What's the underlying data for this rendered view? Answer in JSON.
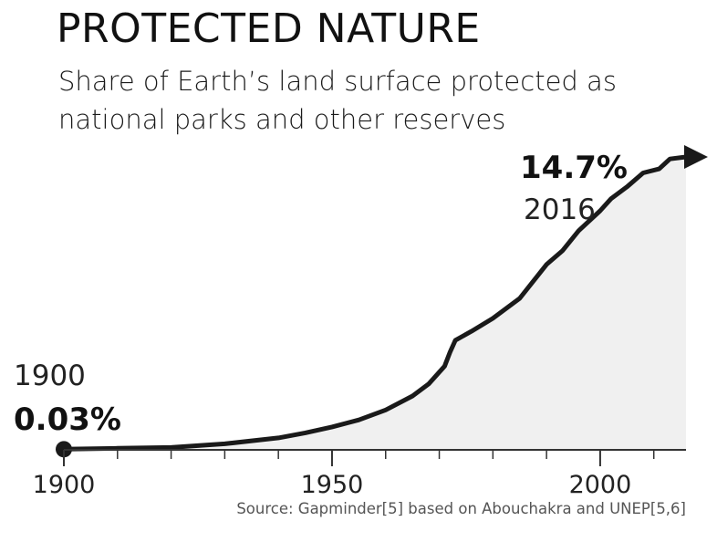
{
  "title": "PROTECTED NATURE",
  "subtitle": "Share of Earth’s land surface protected as national parks and other reserves",
  "source": "Source: Gapminder[5] based on Abouchakra and UNEP[5,6]",
  "colors": {
    "line": "#1a1a1a",
    "area": "#f0f0f0",
    "axis": "#333333"
  },
  "chart_data": {
    "type": "area",
    "title": "PROTECTED NATURE",
    "subtitle": "Share of Earth’s land surface protected as national parks and other reserves",
    "xlabel": "",
    "ylabel": "",
    "xlim": [
      1900,
      2016
    ],
    "ylim": [
      0,
      14.7
    ],
    "x_ticks": [
      1900,
      1950,
      2000
    ],
    "grid": false,
    "series": [
      {
        "x": [
          1900,
          1910,
          1920,
          1930,
          1940,
          1945,
          1950,
          1955,
          1960,
          1965,
          1968,
          1971,
          1972,
          1973,
          1976,
          1980,
          1985,
          1990,
          1993,
          1996,
          2000,
          2002,
          2005,
          2008,
          2011,
          2013,
          2016
        ],
        "y": [
          0.03,
          0.08,
          0.12,
          0.3,
          0.6,
          0.85,
          1.15,
          1.5,
          2.0,
          2.7,
          3.3,
          4.2,
          4.9,
          5.5,
          5.95,
          6.6,
          7.6,
          9.3,
          10.0,
          11.0,
          12.0,
          12.6,
          13.2,
          13.9,
          14.1,
          14.6,
          14.7
        ]
      }
    ],
    "annotations": [
      {
        "year": "1900",
        "value": "0.03%"
      },
      {
        "year": "2016",
        "value": "14.7%"
      }
    ]
  }
}
